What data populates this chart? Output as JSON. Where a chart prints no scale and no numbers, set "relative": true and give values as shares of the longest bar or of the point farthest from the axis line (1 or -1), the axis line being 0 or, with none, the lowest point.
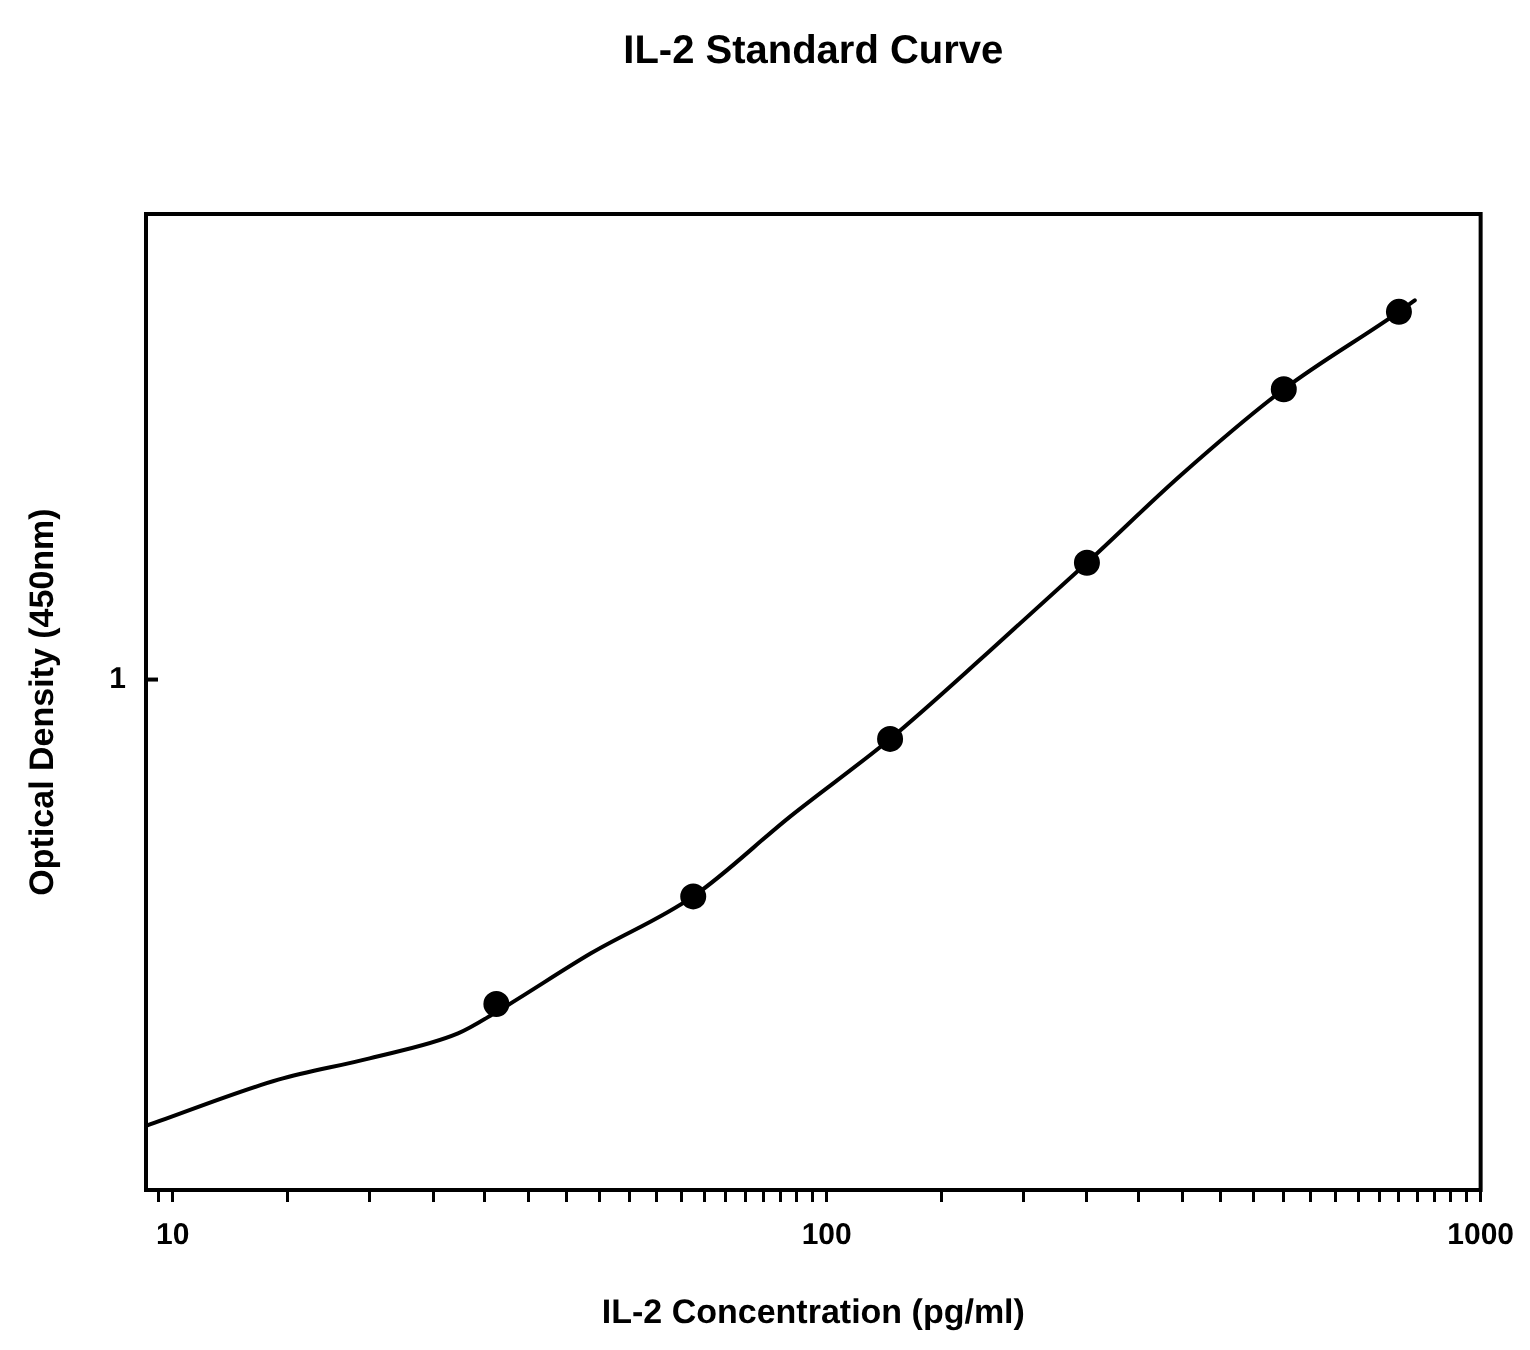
{
  "chart_data": {
    "type": "scatter",
    "title": "IL-2 Standard Curve",
    "xlabel": "IL-2 Concentration (pg/ml)",
    "ylabel": "Optical Density (450nm)",
    "relative": true,
    "annotations": [
      "1"
    ],
    "series": [
      {
        "color": "#000000",
        "marker": "circle",
        "x": [
          31.25,
          62.5,
          125,
          250,
          500,
          750
        ],
        "values": [
          0.209,
          0.33,
          0.507,
          0.705,
          0.9,
          0.987
        ]
      },
      {
        "type": "line",
        "color": "#000000",
        "marker": "none",
        "line_style": "solid",
        "x": [
          9.1,
          14.5,
          20,
          27.3,
          31.25,
          43.6,
          62.5,
          88,
          125,
          177,
          250,
          350,
          500,
          750,
          793
        ],
        "values": [
          0.072,
          0.124,
          0.148,
          0.176,
          0.2,
          0.266,
          0.33,
          0.42,
          0.507,
          0.605,
          0.705,
          0.805,
          0.9,
          0.987,
          1.0
        ]
      }
    ],
    "log": "x",
    "grid": false,
    "legend": false,
    "xlim": [
      9.1,
      1000
    ],
    "xticks": [
      {
        "value": 9.5,
        "label": null
      },
      10,
      {
        "value": 15,
        "label": null
      },
      {
        "value": 20,
        "label": null
      },
      {
        "value": 25,
        "label": null
      },
      {
        "value": 30,
        "label": null
      },
      {
        "value": 35,
        "label": null
      },
      {
        "value": 40,
        "label": null
      },
      {
        "value": 45,
        "label": null
      },
      {
        "value": 50,
        "label": null
      },
      {
        "value": 55,
        "label": null
      },
      {
        "value": 60,
        "label": null
      },
      {
        "value": 65,
        "label": null
      },
      {
        "value": 70,
        "label": null
      },
      {
        "value": 75,
        "label": null
      },
      {
        "value": 80,
        "label": null
      },
      {
        "value": 85,
        "label": null
      },
      {
        "value": 90,
        "label": null
      },
      {
        "value": 95,
        "label": null
      },
      100,
      {
        "value": 150,
        "label": null
      },
      {
        "value": 200,
        "label": null
      },
      {
        "value": 250,
        "label": null
      },
      {
        "value": 300,
        "label": null
      },
      {
        "value": 350,
        "label": null
      },
      {
        "value": 400,
        "label": null
      },
      {
        "value": 450,
        "label": null
      },
      {
        "value": 500,
        "label": null
      },
      {
        "value": 550,
        "label": null
      },
      {
        "value": 600,
        "label": null
      },
      {
        "value": 650,
        "label": null
      },
      {
        "value": 700,
        "label": null
      },
      {
        "value": 750,
        "label": null
      },
      {
        "value": 800,
        "label": null
      },
      {
        "value": 850,
        "label": null
      },
      {
        "value": 900,
        "label": null
      },
      {
        "value": 950,
        "label": null
      },
      1000
    ]
  }
}
